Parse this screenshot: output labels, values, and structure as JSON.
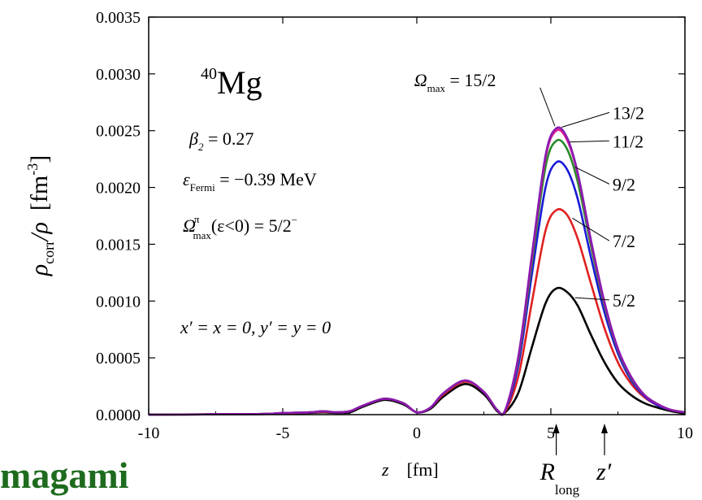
{
  "chart_data": {
    "type": "line",
    "xlabel_var": "z",
    "xlabel_unit": "[fm]",
    "ylabel_num": "ρ",
    "ylabel_num_sub": "corr",
    "ylabel_den": "/ρ",
    "ylabel_unit": "[fm",
    "ylabel_unit_sup": "-3",
    "ylabel_unit_close": "]",
    "xlim": [
      -10,
      10
    ],
    "ylim": [
      0,
      0.0035
    ],
    "x_ticks": [
      -10,
      -5,
      0,
      5,
      10
    ],
    "x_tick_labels": [
      "-10",
      "-5",
      "0",
      "5",
      "10"
    ],
    "y_ticks": [
      0,
      0.0005,
      0.001,
      0.0015,
      0.002,
      0.0025,
      0.003,
      0.0035
    ],
    "y_tick_labels": [
      "0.0000",
      "0.0005",
      "0.0010",
      "0.0015",
      "0.0020",
      "0.0025",
      "0.0030",
      "0.0035"
    ],
    "series": [
      {
        "name": "5/2",
        "color": "#000000",
        "peak": 0.00112,
        "pos": [
          5.4,
          0.00112
        ],
        "points": [
          [
            -10,
            0
          ],
          [
            -6,
            5e-06
          ],
          [
            -5,
            1e-05
          ],
          [
            -4,
            1.5e-05
          ],
          [
            -3.5,
            2e-05
          ],
          [
            -3,
            1.5e-05
          ],
          [
            -2.5,
            2e-05
          ],
          [
            -2,
            7e-05
          ],
          [
            -1.2,
            0.00013
          ],
          [
            -0.5,
            9e-05
          ],
          [
            0,
            2e-05
          ],
          [
            0.5,
            5e-05
          ],
          [
            1,
            0.00016
          ],
          [
            1.8,
            0.00027
          ],
          [
            2.5,
            0.00018
          ],
          [
            3,
            3e-05
          ],
          [
            3.3,
            2e-05
          ],
          [
            3.8,
            0.0002
          ],
          [
            4.3,
            0.0006
          ],
          [
            4.8,
            0.00098
          ],
          [
            5.2,
            0.00111
          ],
          [
            5.6,
            0.00108
          ],
          [
            6,
            0.00096
          ],
          [
            6.5,
            0.0007
          ],
          [
            7,
            0.00046
          ],
          [
            7.5,
            0.00028
          ],
          [
            8,
            0.00017
          ],
          [
            8.5,
            0.0001
          ],
          [
            9,
            6e-05
          ],
          [
            9.5,
            3e-05
          ],
          [
            10,
            1e-05
          ]
        ]
      },
      {
        "name": "7/2",
        "color": "#e02020",
        "peak": 0.00182,
        "pos": [
          5.4,
          0.00182
        ],
        "points": [
          [
            -10,
            0
          ],
          [
            -6,
            5e-06
          ],
          [
            -5,
            1e-05
          ],
          [
            -4,
            2e-05
          ],
          [
            -3.5,
            2.5e-05
          ],
          [
            -3,
            2e-05
          ],
          [
            -2.5,
            3e-05
          ],
          [
            -2,
            8e-05
          ],
          [
            -1.2,
            0.00014
          ],
          [
            -0.5,
            0.0001
          ],
          [
            0,
            2e-05
          ],
          [
            0.5,
            6e-05
          ],
          [
            1,
            0.00018
          ],
          [
            1.8,
            0.00029
          ],
          [
            2.5,
            0.0002
          ],
          [
            3,
            4e-05
          ],
          [
            3.3,
            3e-05
          ],
          [
            3.8,
            0.00035
          ],
          [
            4.3,
            0.001
          ],
          [
            4.8,
            0.00162
          ],
          [
            5.2,
            0.0018
          ],
          [
            5.6,
            0.00176
          ],
          [
            6,
            0.00155
          ],
          [
            6.5,
            0.00115
          ],
          [
            7,
            0.00076
          ],
          [
            7.5,
            0.00046
          ],
          [
            8,
            0.00027
          ],
          [
            8.5,
            0.00015
          ],
          [
            9,
            8e-05
          ],
          [
            9.5,
            4e-05
          ],
          [
            10,
            2e-05
          ]
        ]
      },
      {
        "name": "9/2",
        "color": "#1a1ad8",
        "peak": 0.00223,
        "pos": [
          5.3,
          0.00223
        ],
        "points": [
          [
            -10,
            0
          ],
          [
            -6,
            5e-06
          ],
          [
            -5,
            1.5e-05
          ],
          [
            -4,
            2e-05
          ],
          [
            -3.5,
            3e-05
          ],
          [
            -3,
            2e-05
          ],
          [
            -2.5,
            3e-05
          ],
          [
            -2,
            8e-05
          ],
          [
            -1.2,
            0.00014
          ],
          [
            -0.5,
            0.0001
          ],
          [
            0,
            2e-05
          ],
          [
            0.5,
            6e-05
          ],
          [
            1,
            0.00019
          ],
          [
            1.8,
            0.0003
          ],
          [
            2.5,
            0.0002
          ],
          [
            3,
            4e-05
          ],
          [
            3.3,
            4e-05
          ],
          [
            3.8,
            0.00045
          ],
          [
            4.3,
            0.00125
          ],
          [
            4.8,
            0.002
          ],
          [
            5.2,
            0.00222
          ],
          [
            5.6,
            0.00216
          ],
          [
            6,
            0.0019
          ],
          [
            6.5,
            0.00138
          ],
          [
            7,
            0.0009
          ],
          [
            7.5,
            0.00054
          ],
          [
            8,
            0.0003
          ],
          [
            8.5,
            0.00016
          ],
          [
            9,
            8e-05
          ],
          [
            9.5,
            4e-05
          ],
          [
            10,
            2e-05
          ]
        ]
      },
      {
        "name": "11/2",
        "color": "#2a8a2a",
        "peak": 0.00242,
        "pos": [
          5.3,
          0.00242
        ],
        "points": [
          [
            -10,
            0
          ],
          [
            -6,
            5e-06
          ],
          [
            -5,
            1.5e-05
          ],
          [
            -4,
            2e-05
          ],
          [
            -3.5,
            3e-05
          ],
          [
            -3,
            2e-05
          ],
          [
            -2.5,
            3e-05
          ],
          [
            -2,
            8e-05
          ],
          [
            -1.2,
            0.00014
          ],
          [
            -0.5,
            0.0001
          ],
          [
            0,
            2e-05
          ],
          [
            0.5,
            6e-05
          ],
          [
            1,
            0.00019
          ],
          [
            1.8,
            0.0003
          ],
          [
            2.5,
            0.0002
          ],
          [
            3,
            4e-05
          ],
          [
            3.3,
            4e-05
          ],
          [
            3.8,
            0.0005
          ],
          [
            4.3,
            0.00135
          ],
          [
            4.8,
            0.00218
          ],
          [
            5.2,
            0.00241
          ],
          [
            5.6,
            0.00234
          ],
          [
            6,
            0.00205
          ],
          [
            6.5,
            0.00148
          ],
          [
            7,
            0.00096
          ],
          [
            7.5,
            0.00057
          ],
          [
            8,
            0.00032
          ],
          [
            8.5,
            0.00017
          ],
          [
            9,
            9e-05
          ],
          [
            9.5,
            4e-05
          ],
          [
            10,
            2e-05
          ]
        ]
      },
      {
        "name": "13/2",
        "color": "#e02090",
        "peak": 0.00251,
        "pos": [
          5.25,
          0.00251
        ],
        "points": [
          [
            -10,
            0
          ],
          [
            -6,
            5e-06
          ],
          [
            -5,
            1.5e-05
          ],
          [
            -4,
            2e-05
          ],
          [
            -3.5,
            3e-05
          ],
          [
            -3,
            2e-05
          ],
          [
            -2.5,
            3e-05
          ],
          [
            -2,
            8e-05
          ],
          [
            -1.2,
            0.00014
          ],
          [
            -0.5,
            0.0001
          ],
          [
            0,
            2e-05
          ],
          [
            0.5,
            6e-05
          ],
          [
            1,
            0.00019
          ],
          [
            1.8,
            0.0003
          ],
          [
            2.5,
            0.0002
          ],
          [
            3,
            4e-05
          ],
          [
            3.3,
            4e-05
          ],
          [
            3.8,
            0.00052
          ],
          [
            4.3,
            0.0014
          ],
          [
            4.8,
            0.00226
          ],
          [
            5.2,
            0.0025
          ],
          [
            5.6,
            0.00242
          ],
          [
            6,
            0.00212
          ],
          [
            6.5,
            0.00152
          ],
          [
            7,
            0.00098
          ],
          [
            7.5,
            0.00058
          ],
          [
            8,
            0.00033
          ],
          [
            8.5,
            0.00017
          ],
          [
            9,
            9e-05
          ],
          [
            9.5,
            4e-05
          ],
          [
            10,
            2e-05
          ]
        ]
      },
      {
        "name": "15/2",
        "color": "#8a1ab0",
        "peak": 0.00253,
        "pos": [
          5.2,
          0.00253
        ],
        "points": [
          [
            -10,
            0
          ],
          [
            -6,
            5e-06
          ],
          [
            -5,
            1.5e-05
          ],
          [
            -4,
            2e-05
          ],
          [
            -3.5,
            3e-05
          ],
          [
            -3,
            2e-05
          ],
          [
            -2.5,
            3e-05
          ],
          [
            -2,
            8e-05
          ],
          [
            -1.2,
            0.00014
          ],
          [
            -0.5,
            0.0001
          ],
          [
            0,
            2e-05
          ],
          [
            0.5,
            6e-05
          ],
          [
            1,
            0.00019
          ],
          [
            1.8,
            0.0003
          ],
          [
            2.5,
            0.0002
          ],
          [
            3,
            4e-05
          ],
          [
            3.3,
            4e-05
          ],
          [
            3.8,
            0.00053
          ],
          [
            4.3,
            0.00142
          ],
          [
            4.8,
            0.00228
          ],
          [
            5.2,
            0.00252
          ],
          [
            5.6,
            0.00244
          ],
          [
            6,
            0.00213
          ],
          [
            6.5,
            0.00153
          ],
          [
            7,
            0.00099
          ],
          [
            7.5,
            0.00058
          ],
          [
            8,
            0.00033
          ],
          [
            8.5,
            0.00017
          ],
          [
            9,
            9e-05
          ],
          [
            9.5,
            4e-05
          ],
          [
            10,
            2e-05
          ]
        ]
      }
    ],
    "series_labels": [
      {
        "text": "Ω",
        "sub": "max",
        "rest": " = 15/2",
        "label_pos": [
          -0.1,
          0.00295
        ],
        "target": [
          5.15,
          0.00254
        ]
      },
      {
        "text": "13/2",
        "label_pos": [
          7.3,
          0.00266
        ],
        "target": [
          5.4,
          0.00253
        ]
      },
      {
        "text": "11/2",
        "label_pos": [
          7.3,
          0.00241
        ],
        "target": [
          5.7,
          0.0024
        ]
      },
      {
        "text": "9/2",
        "label_pos": [
          7.3,
          0.00203
        ],
        "target": [
          5.9,
          0.00218
        ]
      },
      {
        "text": "7/2",
        "label_pos": [
          7.3,
          0.00153
        ],
        "target": [
          5.8,
          0.00173
        ]
      },
      {
        "text": "5/2",
        "label_pos": [
          7.3,
          0.00101
        ],
        "target": [
          5.9,
          0.00103
        ]
      }
    ],
    "annotations": {
      "nucleus_mass": "40",
      "nucleus_symbol": "Mg",
      "beta_sym": "β",
      "beta_sub": "2",
      "beta_val": " = 0.27",
      "eps_sym": "ε",
      "eps_sub": "Fermi",
      "eps_val": " = −0.39  MeV",
      "omega_sym": "Ω",
      "omega_sup": "π",
      "omega_sub": "max",
      "omega_val": "(ε<0) = 5/2",
      "omega_val_sup": "−",
      "coords": "x′ = x = 0,  y′ = y = 0"
    },
    "markers": [
      {
        "name": "R",
        "sub": "long",
        "x": 5.2
      },
      {
        "name": "z′",
        "x": 7.0
      }
    ]
  },
  "footer_text": "magami"
}
